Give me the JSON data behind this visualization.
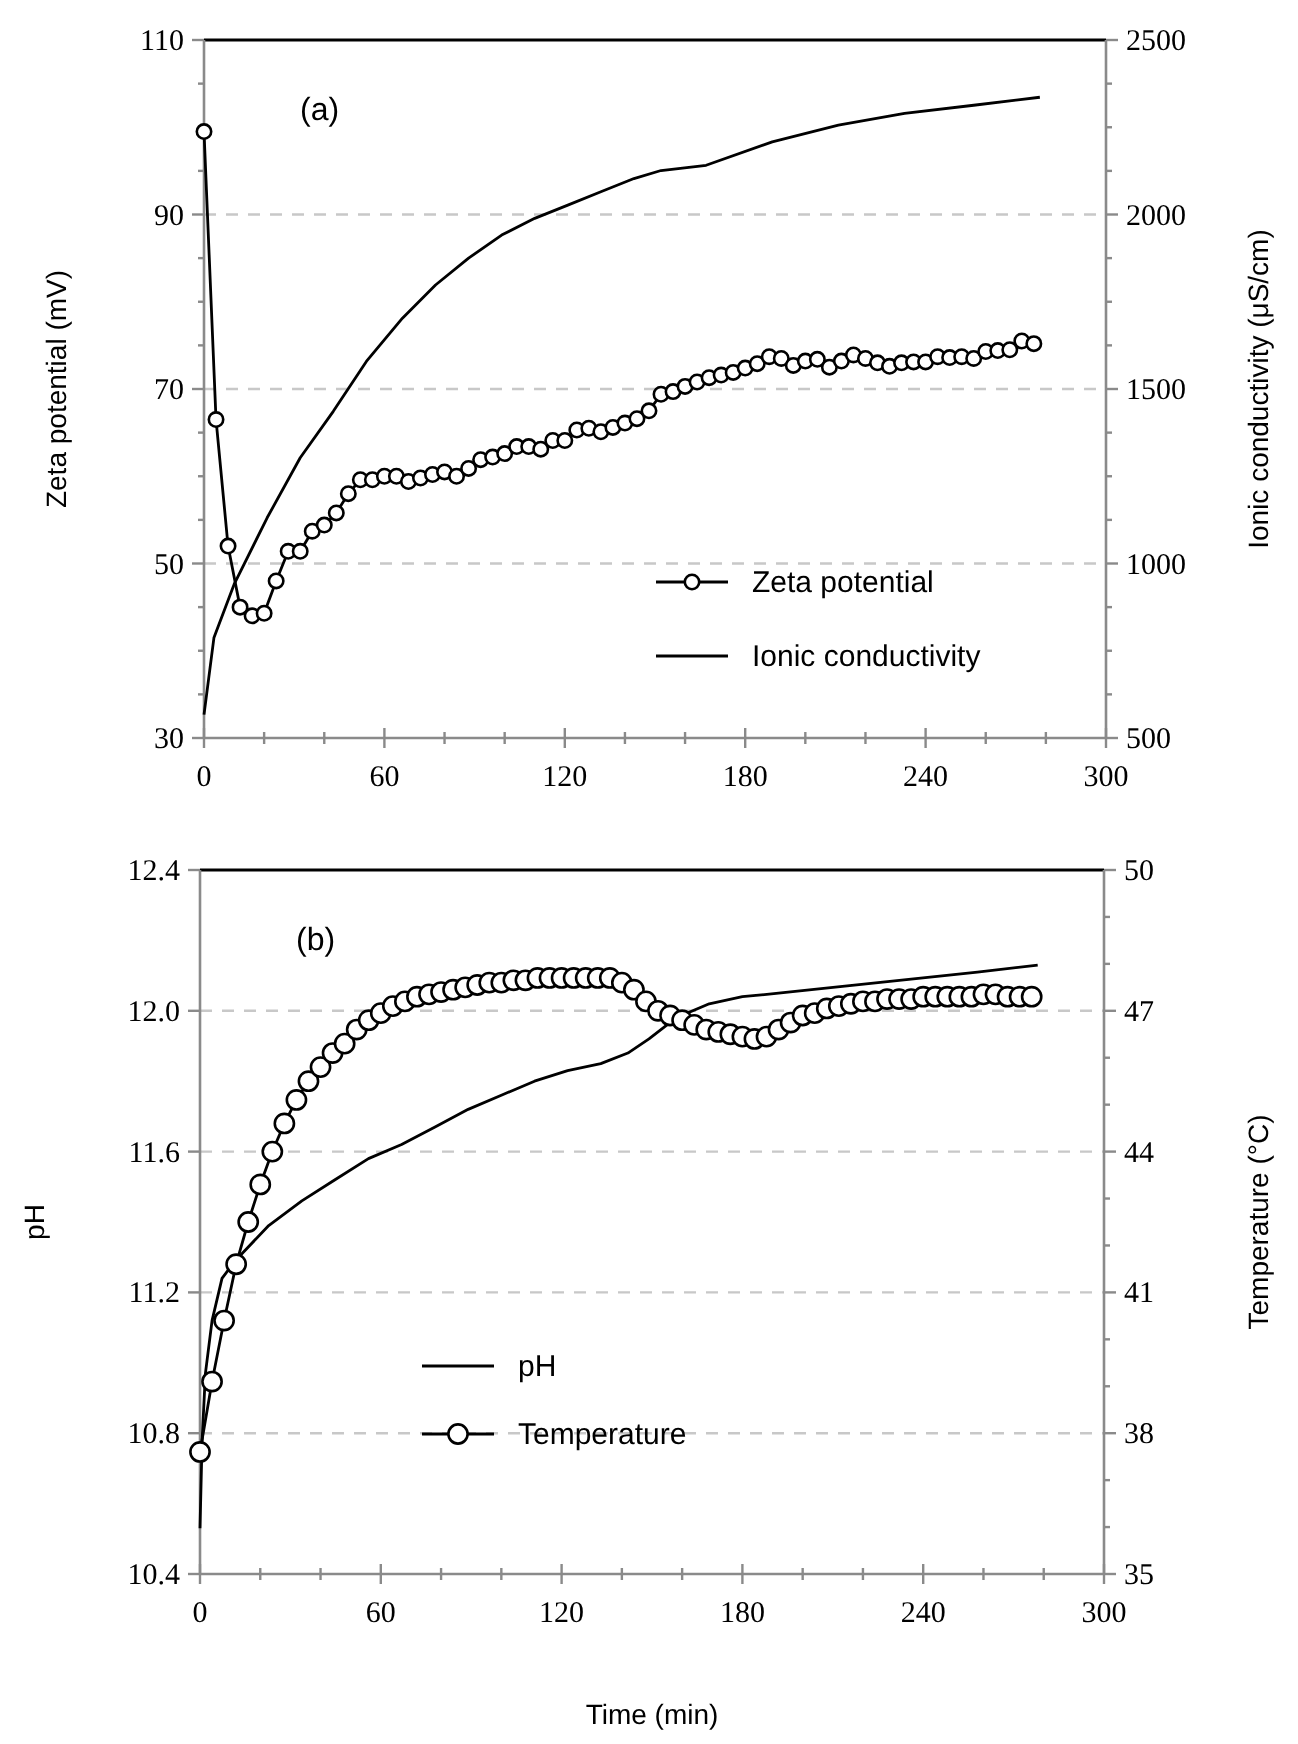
{
  "chart_data": [
    {
      "type": "line",
      "ylabel": "Zeta potential (mV)",
      "y2label": "Ionic conductivity (μS/cm)",
      "annotations": [
        "(a)"
      ],
      "xlim": [
        0,
        300
      ],
      "xticks": [
        0,
        {
          "value": 20,
          "label": null
        },
        {
          "value": 40,
          "label": null
        },
        60,
        {
          "value": 80,
          "label": null
        },
        {
          "value": 100,
          "label": null
        },
        120,
        {
          "value": 140,
          "label": null
        },
        {
          "value": 160,
          "label": null
        },
        180,
        {
          "value": 200,
          "label": null
        },
        {
          "value": 220,
          "label": null
        },
        240,
        {
          "value": 260,
          "label": null
        },
        {
          "value": 280,
          "label": null
        },
        300
      ],
      "ylim": [
        30,
        110
      ],
      "yticks": [
        30,
        {
          "value": 35,
          "label": null
        },
        {
          "value": 40,
          "label": null
        },
        {
          "value": 45,
          "label": null
        },
        50,
        {
          "value": 55,
          "label": null
        },
        {
          "value": 60,
          "label": null
        },
        {
          "value": 65,
          "label": null
        },
        70,
        {
          "value": 75,
          "label": null
        },
        {
          "value": 80,
          "label": null
        },
        {
          "value": 85,
          "label": null
        },
        90,
        {
          "value": 95,
          "label": null
        },
        {
          "value": 100,
          "label": null
        },
        {
          "value": 105,
          "label": null
        },
        110
      ],
      "y2lim": [
        500,
        2500
      ],
      "y2ticks": [
        500,
        {
          "value": 625,
          "label": null
        },
        {
          "value": 750,
          "label": null
        },
        {
          "value": 875,
          "label": null
        },
        1000,
        {
          "value": 1125,
          "label": null
        },
        {
          "value": 1250,
          "label": null
        },
        {
          "value": 1375,
          "label": null
        },
        1500,
        {
          "value": 1625,
          "label": null
        },
        {
          "value": 1750,
          "label": null
        },
        {
          "value": 1875,
          "label": null
        },
        2000,
        {
          "value": 2125,
          "label": null
        },
        {
          "value": 2250,
          "label": null
        },
        {
          "value": 2375,
          "label": null
        },
        2500
      ],
      "grid": "y",
      "legend": "bottom right",
      "series": [
        {
          "name": "Zeta potential",
          "color": "#000000",
          "marker": "circle",
          "x": [
            0,
            4,
            8,
            12,
            16,
            20,
            24,
            28,
            32,
            36,
            40,
            44,
            48,
            52,
            56,
            60,
            64,
            68,
            72,
            76,
            80,
            84,
            88,
            92,
            96,
            100,
            104,
            108,
            112,
            116,
            120,
            124,
            128,
            132,
            136,
            140,
            144,
            148,
            152,
            156,
            160,
            164,
            168,
            172,
            176,
            180,
            184,
            188,
            192,
            196,
            200,
            204,
            208,
            212,
            216,
            220,
            224,
            228,
            232,
            236,
            240,
            244,
            248,
            252,
            256,
            260,
            264,
            268,
            272,
            276
          ],
          "values": [
            99.5,
            66.5,
            52,
            45,
            44,
            44.3,
            48,
            51.4,
            51.4,
            53.7,
            54.4,
            55.8,
            58,
            59.6,
            59.6,
            60,
            60,
            59.4,
            59.8,
            60.2,
            60.5,
            60,
            60.9,
            61.9,
            62.2,
            62.6,
            63.4,
            63.4,
            63.1,
            64.1,
            64.1,
            65.3,
            65.5,
            65.1,
            65.6,
            66.1,
            66.6,
            67.5,
            69.4,
            69.7,
            70.3,
            70.8,
            71.3,
            71.6,
            71.9,
            72.4,
            72.9,
            73.7,
            73.5,
            72.7,
            73.2,
            73.4,
            72.5,
            73.2,
            73.9,
            73.5,
            73,
            72.6,
            73,
            73.1,
            73.1,
            73.7,
            73.6,
            73.7,
            73.5,
            74.3,
            74.4,
            74.5,
            75.5,
            75.2
          ]
        },
        {
          "name": "Ionic conductivity",
          "color": "#000000",
          "marker": "none",
          "axis": "y2",
          "x": [
            0,
            3.3,
            10,
            21,
            32,
            43,
            54,
            66,
            77,
            88,
            99,
            110,
            121,
            132,
            143,
            152,
            167,
            189,
            211,
            233,
            256,
            278
          ],
          "values": [
            567,
            787,
            940,
            1131,
            1303,
            1436,
            1579,
            1703,
            1798,
            1875,
            1941,
            1989,
            2027,
            2065,
            2103,
            2126,
            2141,
            2208,
            2256,
            2290,
            2313,
            2336
          ]
        }
      ]
    },
    {
      "type": "line",
      "xlabel": "Time (min)",
      "ylabel": "pH",
      "y2label": "Temperature (°C)",
      "annotations": [
        "(b)"
      ],
      "xlim": [
        0,
        300
      ],
      "xticks": [
        0,
        {
          "value": 20,
          "label": null
        },
        {
          "value": 40,
          "label": null
        },
        60,
        {
          "value": 80,
          "label": null
        },
        {
          "value": 100,
          "label": null
        },
        120,
        {
          "value": 140,
          "label": null
        },
        {
          "value": 160,
          "label": null
        },
        180,
        {
          "value": 200,
          "label": null
        },
        {
          "value": 220,
          "label": null
        },
        240,
        {
          "value": 260,
          "label": null
        },
        {
          "value": 280,
          "label": null
        },
        300
      ],
      "ylim": [
        10.4,
        12.4
      ],
      "yticks": [
        10.4,
        10.8,
        11.2,
        11.6,
        {
          "value": 12,
          "label": "12.0"
        },
        12.4
      ],
      "y2lim": [
        35,
        50
      ],
      "y2ticks": [
        35,
        {
          "value": 36,
          "label": null
        },
        {
          "value": 37,
          "label": null
        },
        38,
        {
          "value": 39,
          "label": null
        },
        {
          "value": 40,
          "label": null
        },
        41,
        {
          "value": 42,
          "label": null
        },
        {
          "value": 43,
          "label": null
        },
        44,
        {
          "value": 45,
          "label": null
        },
        {
          "value": 46,
          "label": null
        },
        47,
        {
          "value": 48,
          "label": null
        },
        {
          "value": 49,
          "label": null
        },
        50
      ],
      "grid": "y",
      "legend": "bottom",
      "series": [
        {
          "name": "pH",
          "color": "#000000",
          "marker": "none",
          "x": [
            0,
            0.7,
            1.8,
            4,
            7.3,
            11.7,
            22.8,
            33.8,
            44.8,
            55.9,
            66.9,
            78,
            89,
            100,
            111,
            122,
            133,
            142,
            149,
            158,
            169,
            180,
            192,
            214,
            236,
            258,
            278
          ],
          "values": [
            10.53,
            10.78,
            10.97,
            11.12,
            11.24,
            11.29,
            11.39,
            11.46,
            11.52,
            11.58,
            11.62,
            11.67,
            11.72,
            11.76,
            11.8,
            11.83,
            11.85,
            11.88,
            11.92,
            11.98,
            12.02,
            12.04,
            12.05,
            12.07,
            12.09,
            12.11,
            12.13
          ]
        },
        {
          "name": "Temperature",
          "color": "#000000",
          "marker": "circle",
          "axis": "y2",
          "x": [
            0,
            4,
            8,
            12,
            16,
            20,
            24,
            28,
            32,
            36,
            40,
            44,
            48,
            52,
            56,
            60,
            64,
            68,
            72,
            76,
            80,
            84,
            88,
            92,
            96,
            100,
            104,
            108,
            112,
            116,
            120,
            124,
            128,
            132,
            136,
            140,
            144,
            148,
            152,
            156,
            160,
            164,
            168,
            172,
            176,
            180,
            184,
            188,
            192,
            196,
            200,
            204,
            208,
            212,
            216,
            220,
            224,
            228,
            232,
            236,
            240,
            244,
            248,
            252,
            256,
            260,
            264,
            268,
            272,
            276
          ],
          "values": [
            37.6,
            39.1,
            40.4,
            41.6,
            42.5,
            43.3,
            44,
            44.6,
            45.1,
            45.5,
            45.8,
            46.1,
            46.3,
            46.6,
            46.8,
            46.95,
            47.1,
            47.2,
            47.3,
            47.35,
            47.4,
            47.45,
            47.5,
            47.55,
            47.6,
            47.6,
            47.65,
            47.65,
            47.7,
            47.7,
            47.7,
            47.7,
            47.7,
            47.7,
            47.7,
            47.6,
            47.45,
            47.2,
            47,
            46.9,
            46.8,
            46.7,
            46.6,
            46.55,
            46.5,
            46.45,
            46.4,
            46.45,
            46.6,
            46.75,
            46.9,
            46.95,
            47.05,
            47.1,
            47.15,
            47.2,
            47.2,
            47.25,
            47.25,
            47.25,
            47.3,
            47.3,
            47.3,
            47.3,
            47.3,
            47.35,
            47.35,
            47.3,
            47.3,
            47.3
          ]
        }
      ]
    }
  ]
}
